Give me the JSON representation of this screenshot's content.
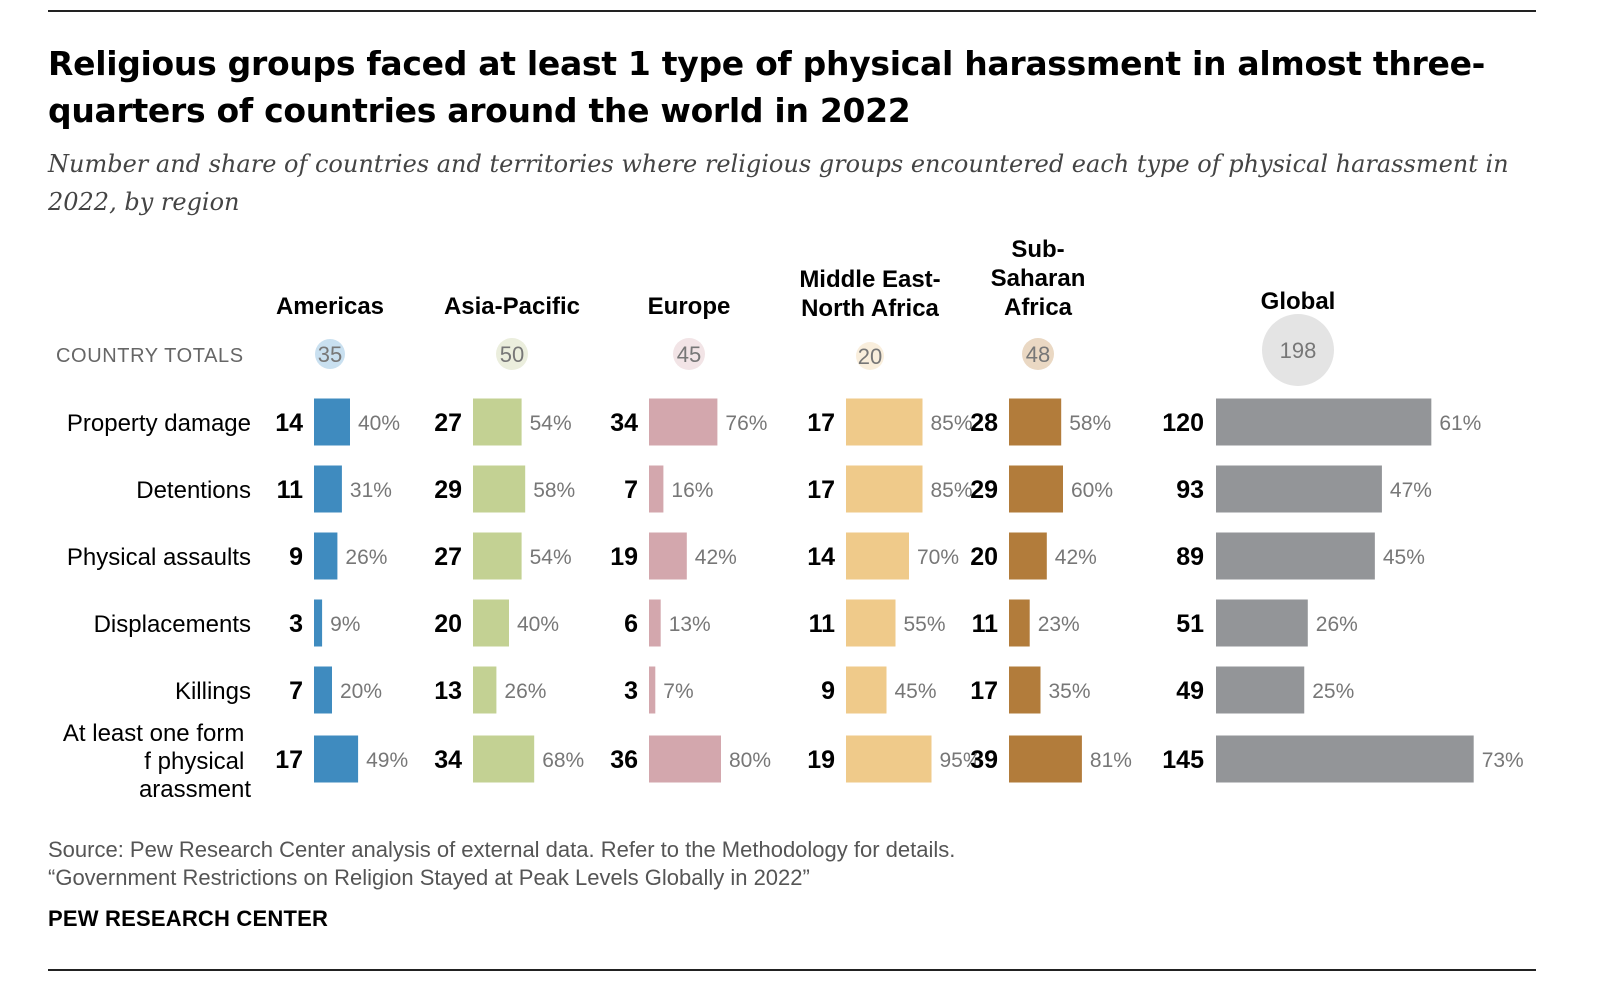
{
  "title": "Religious groups faced at least 1 type of physical harassment in almost three-quarters of countries around the world in 2022",
  "subtitle": "Number and share of countries and territories where religious groups encountered each type of physical harassment in 2022, by region",
  "source_line": "Source: Pew Research Center analysis of external data. Refer to the Methodology for details.",
  "report_line": "“Government Restrictions on Religion Stayed at Peak Levels Globally in 2022”",
  "brand": "PEW RESEARCH CENTER",
  "chart_data": {
    "type": "bar",
    "totals_label": "COUNTRY TOTALS",
    "categories": [
      "Property damage",
      "Detentions",
      "Physical assaults",
      "Displacements",
      "Killings",
      "At least one form of physical harassment"
    ],
    "series": [
      {
        "name": "Americas",
        "total": 35,
        "color": "#3f8bbf",
        "circle_color": "#c9e0f0",
        "counts": [
          14,
          11,
          9,
          3,
          7,
          17
        ],
        "percents": [
          40,
          31,
          26,
          9,
          20,
          49
        ]
      },
      {
        "name": "Asia-Pacific",
        "total": 50,
        "color": "#c3d193",
        "circle_color": "#ebeedd",
        "counts": [
          27,
          29,
          27,
          20,
          13,
          34
        ],
        "percents": [
          54,
          58,
          54,
          40,
          26,
          68
        ]
      },
      {
        "name": "Europe",
        "total": 45,
        "color": "#d3a7ad",
        "circle_color": "#f2e4e6",
        "counts": [
          34,
          7,
          19,
          6,
          3,
          36
        ],
        "percents": [
          76,
          16,
          42,
          13,
          7,
          80
        ]
      },
      {
        "name": "Middle East-North Africa",
        "total": 20,
        "color": "#efca8a",
        "circle_color": "#f9eedc",
        "counts": [
          17,
          17,
          14,
          11,
          9,
          19
        ],
        "percents": [
          85,
          85,
          70,
          55,
          45,
          95
        ]
      },
      {
        "name": "Sub-Saharan Africa",
        "total": 48,
        "color": "#b27c3b",
        "circle_color": "#ead8c3",
        "counts": [
          28,
          29,
          20,
          11,
          17,
          39
        ],
        "percents": [
          58,
          60,
          42,
          23,
          35,
          81
        ]
      },
      {
        "name": "Global",
        "total": 198,
        "color": "#939598",
        "circle_color": "#e4e4e4",
        "counts": [
          120,
          93,
          89,
          51,
          49,
          145
        ],
        "percents": [
          61,
          47,
          45,
          26,
          25,
          73
        ]
      }
    ]
  }
}
